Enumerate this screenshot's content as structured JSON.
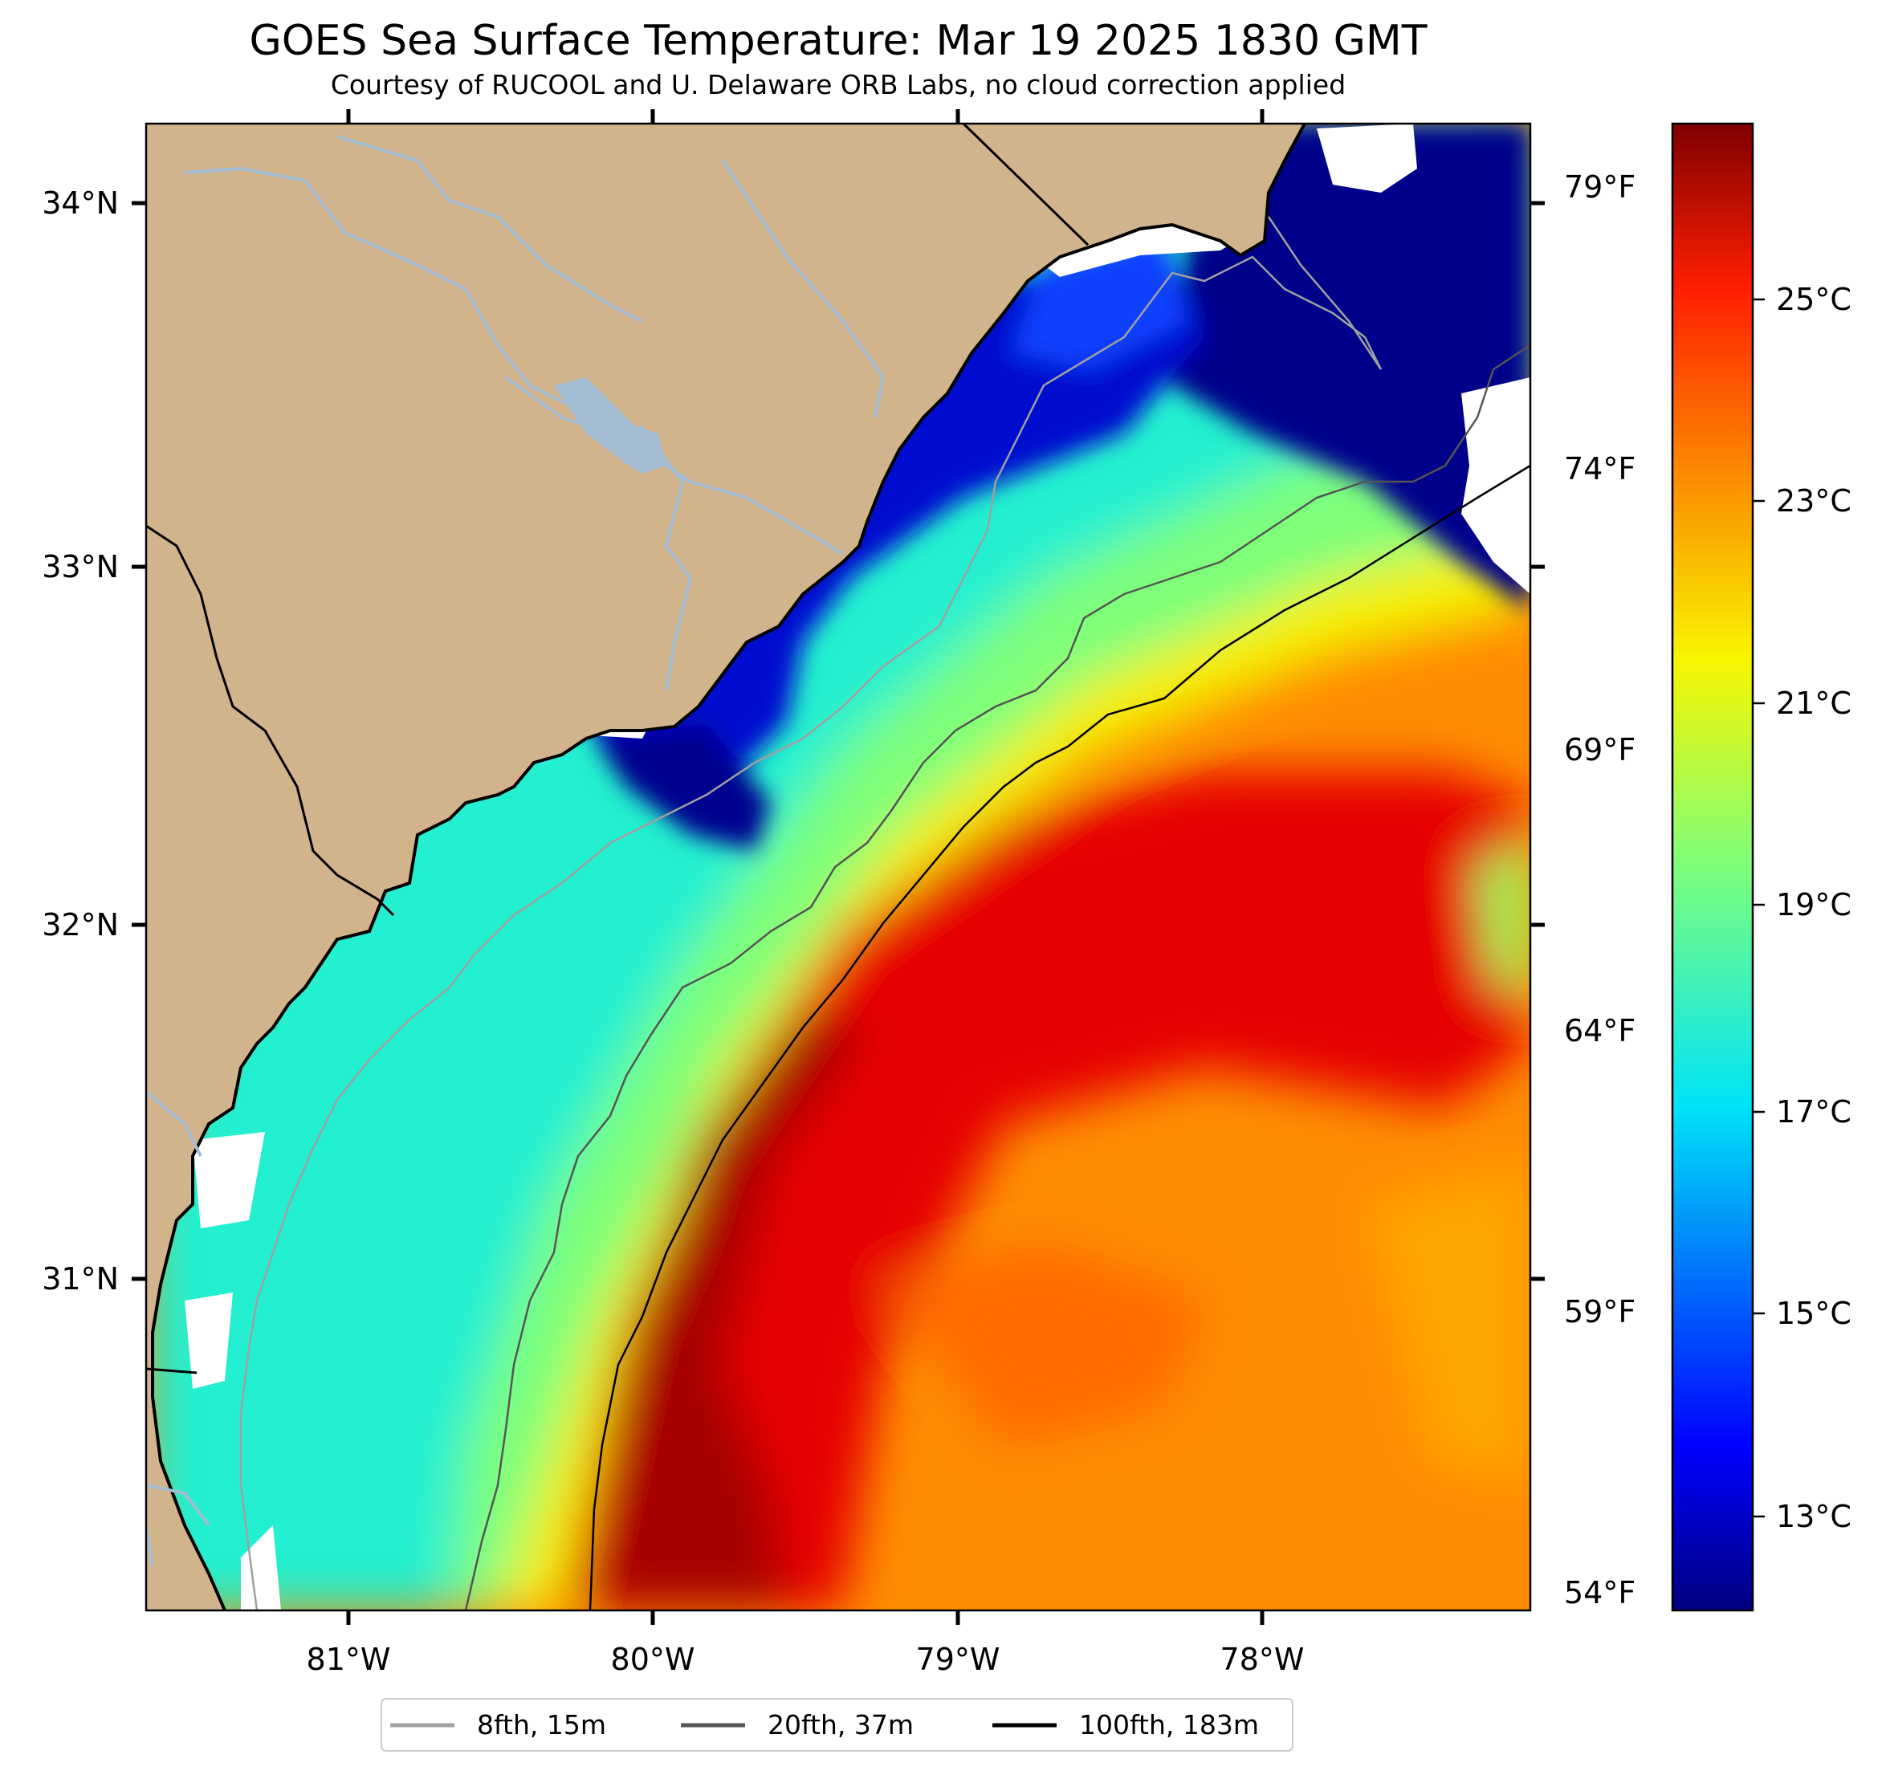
{
  "title": "GOES Sea Surface Temperature: Mar 19 2025 1830 GMT",
  "subtitle": "Courtesy of RUCOOL and U. Delaware ORB Labs, no cloud correction applied",
  "map": {
    "lon_ticks": [
      "81°W",
      "80°W",
      "79°W",
      "78°W"
    ],
    "lat_ticks": [
      "34°N",
      "33°N",
      "32°N",
      "31°N"
    ],
    "colors": {
      "land": "#d2b48c",
      "coastline": "#000000",
      "rivers": "#a4bcd2",
      "cloud_or_nodata": "#ffffff"
    },
    "description_keys": [
      "sst-field",
      "land",
      "isobaths"
    ]
  },
  "colorbar": {
    "colormap": "jet",
    "celsius_ticks": [
      "25°C",
      "23°C",
      "21°C",
      "19°C",
      "17°C",
      "15°C",
      "13°C"
    ],
    "fahrenheit_ticks": [
      "79°F",
      "74°F",
      "69°F",
      "64°F",
      "59°F",
      "54°F"
    ]
  },
  "legend": {
    "items": [
      {
        "label": "8fth, 15m",
        "color": "#a0a0a0"
      },
      {
        "label": "20fth, 37m",
        "color": "#555555"
      },
      {
        "label": "100fth, 183m",
        "color": "#000000"
      }
    ]
  }
}
